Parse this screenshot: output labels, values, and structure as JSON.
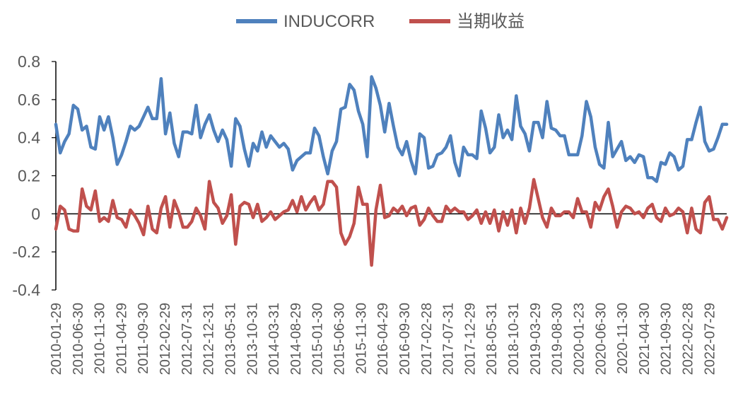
{
  "chart_data": {
    "type": "line",
    "title": "",
    "xlabel": "",
    "ylabel": "",
    "ylim": [
      -0.4,
      0.8
    ],
    "yticks": [
      "0.8",
      "0.6",
      "0.4",
      "0.2",
      "0",
      "-0.2",
      "-0.4"
    ],
    "legend_position": "top-center",
    "grid": false,
    "x_tick_labels": [
      "2010-01-29",
      "2010-06-30",
      "2010-11-30",
      "2011-04-29",
      "2011-09-30",
      "2012-02-29",
      "2012-07-31",
      "2012-12-31",
      "2013-05-31",
      "2013-10-31",
      "2014-03-31",
      "2014-08-29",
      "2015-01-30",
      "2015-06-30",
      "2015-11-30",
      "2016-04-29",
      "2016-09-30",
      "2017-02-28",
      "2017-07-31",
      "2017-12-29",
      "2018-05-31",
      "2018-10-31",
      "2019-03-29",
      "2019-08-30",
      "2020-01-23",
      "2020-06-30",
      "2020-11-30",
      "2021-04-30",
      "2021-09-30",
      "2022-02-28",
      "2022-07-29"
    ],
    "x_start": "2010-01",
    "x_end": "2022-11",
    "series": [
      {
        "name": "INDUCORR",
        "color": "#4f81bd",
        "values": [
          0.47,
          0.32,
          0.38,
          0.42,
          0.57,
          0.55,
          0.44,
          0.46,
          0.35,
          0.34,
          0.51,
          0.44,
          0.51,
          0.4,
          0.26,
          0.31,
          0.38,
          0.46,
          0.44,
          0.46,
          0.51,
          0.56,
          0.5,
          0.5,
          0.71,
          0.42,
          0.53,
          0.37,
          0.3,
          0.43,
          0.43,
          0.42,
          0.57,
          0.4,
          0.47,
          0.52,
          0.44,
          0.38,
          0.44,
          0.39,
          0.25,
          0.5,
          0.46,
          0.34,
          0.25,
          0.37,
          0.33,
          0.43,
          0.35,
          0.41,
          0.38,
          0.35,
          0.37,
          0.34,
          0.23,
          0.28,
          0.3,
          0.32,
          0.32,
          0.45,
          0.41,
          0.3,
          0.21,
          0.33,
          0.38,
          0.55,
          0.56,
          0.68,
          0.65,
          0.54,
          0.47,
          0.3,
          0.72,
          0.66,
          0.57,
          0.43,
          0.58,
          0.46,
          0.35,
          0.31,
          0.38,
          0.28,
          0.21,
          0.42,
          0.4,
          0.24,
          0.25,
          0.31,
          0.32,
          0.35,
          0.41,
          0.27,
          0.2,
          0.35,
          0.31,
          0.31,
          0.29,
          0.54,
          0.45,
          0.32,
          0.35,
          0.52,
          0.4,
          0.44,
          0.39,
          0.62,
          0.46,
          0.42,
          0.33,
          0.48,
          0.48,
          0.4,
          0.59,
          0.45,
          0.44,
          0.41,
          0.41,
          0.31,
          0.31,
          0.31,
          0.41,
          0.59,
          0.51,
          0.35,
          0.26,
          0.24,
          0.48,
          0.3,
          0.34,
          0.38,
          0.28,
          0.3,
          0.27,
          0.31,
          0.3,
          0.19,
          0.19,
          0.17,
          0.27,
          0.26,
          0.32,
          0.3,
          0.23,
          0.25,
          0.39,
          0.39,
          0.48,
          0.56,
          0.38,
          0.33,
          0.34,
          0.4,
          0.47,
          0.47
        ]
      },
      {
        "name": "当期收益",
        "color": "#c0504d",
        "values": [
          -0.08,
          0.04,
          0.02,
          -0.08,
          -0.09,
          -0.09,
          0.13,
          0.04,
          0.02,
          0.12,
          -0.04,
          -0.02,
          -0.04,
          0.07,
          -0.02,
          -0.03,
          -0.07,
          0.02,
          -0.01,
          -0.05,
          -0.11,
          0.04,
          -0.08,
          -0.1,
          0.03,
          0.09,
          -0.07,
          0.07,
          0.01,
          -0.07,
          -0.07,
          -0.04,
          0.03,
          -0.01,
          -0.08,
          0.17,
          0.06,
          0.03,
          -0.05,
          -0.01,
          0.1,
          -0.16,
          0.04,
          0.06,
          0.05,
          -0.02,
          0.05,
          -0.04,
          -0.02,
          0.01,
          -0.03,
          -0.01,
          0.01,
          0.02,
          0.07,
          0.01,
          0.09,
          0.02,
          0.06,
          0.09,
          0.02,
          0.05,
          0.17,
          0.17,
          0.14,
          -0.1,
          -0.16,
          -0.12,
          -0.05,
          0.14,
          0.05,
          0.05,
          -0.27,
          0.02,
          0.15,
          -0.02,
          -0.01,
          0.03,
          0.01,
          0.04,
          -0.01,
          0.03,
          0.04,
          -0.06,
          -0.03,
          0.03,
          -0.01,
          -0.04,
          -0.04,
          0.04,
          0.01,
          0.03,
          0.01,
          0.01,
          -0.03,
          -0.01,
          0.02,
          -0.05,
          0.01,
          -0.05,
          0.02,
          -0.09,
          0.01,
          -0.06,
          0.02,
          -0.1,
          0.03,
          -0.05,
          0.03,
          0.18,
          0.08,
          -0.02,
          -0.07,
          0.03,
          -0.01,
          -0.01,
          0.01,
          0.01,
          -0.02,
          0.08,
          0.01,
          0.01,
          -0.07,
          0.06,
          0.02,
          0.09,
          0.13,
          0.04,
          -0.07,
          0.01,
          0.04,
          0.03,
          0.0,
          0.01,
          -0.02,
          0.03,
          0.05,
          -0.02,
          -0.04,
          0.03,
          -0.01,
          0.0,
          0.03,
          0.01,
          -0.1,
          0.03,
          -0.08,
          -0.1,
          0.06,
          0.09,
          -0.03,
          -0.03,
          -0.08,
          -0.02
        ]
      }
    ]
  }
}
